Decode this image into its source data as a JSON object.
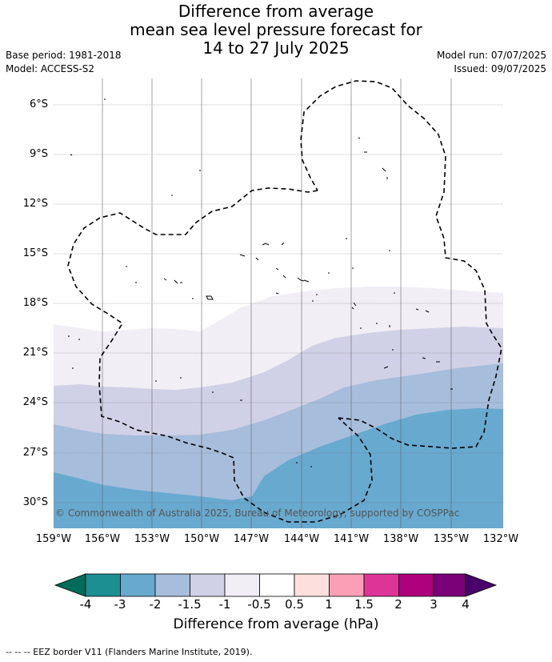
{
  "title": {
    "line1": "Difference from average",
    "line2": "mean sea level pressure forecast for",
    "line3": "14 to 27 July 2025"
  },
  "meta": {
    "base_period": "Base period: 1981-2018",
    "model": "Model: ACCESS-S2",
    "model_run": "Model run: 07/07/2025",
    "issued": "Issued: 09/07/2025"
  },
  "map": {
    "lat_labels": [
      "6°S",
      "9°S",
      "12°S",
      "15°S",
      "18°S",
      "21°S",
      "24°S",
      "27°S",
      "30°S"
    ],
    "lon_labels": [
      "159°W",
      "156°W",
      "153°W",
      "150°W",
      "147°W",
      "144°W",
      "141°W",
      "138°W",
      "135°W",
      "132°W"
    ],
    "copyright": "© Commonwealth of Australia 2025, Bureau of Meteorology, supported by COSPPac",
    "colors": {
      "band_-1_-0.5": "#f2eef6",
      "band_-1.5_-1": "#d0d1e6",
      "band_-2_-1.5": "#a6bddb",
      "band_-3_-2": "#67a9cf",
      "eez_border": "#000000"
    }
  },
  "colorbar": {
    "title": "Difference from average (hPa)",
    "tick_labels": [
      "-4",
      "-3",
      "-2",
      "-1.5",
      "-1",
      "-0.5",
      "0.5",
      "1",
      "1.5",
      "2",
      "3",
      "4"
    ],
    "colors": [
      "#1b8f92",
      "#67a9cf",
      "#a6bddb",
      "#d0d1e6",
      "#f2eef6",
      "#ffffff",
      "#fde0dd",
      "#fa9fb5",
      "#dd3497",
      "#ae017e",
      "#7a0177"
    ],
    "extend_low": "#016c59",
    "extend_high": "#49006a"
  },
  "footer": "-- -- -- EEZ border V11 (Flanders Marine Institute, 2019)."
}
